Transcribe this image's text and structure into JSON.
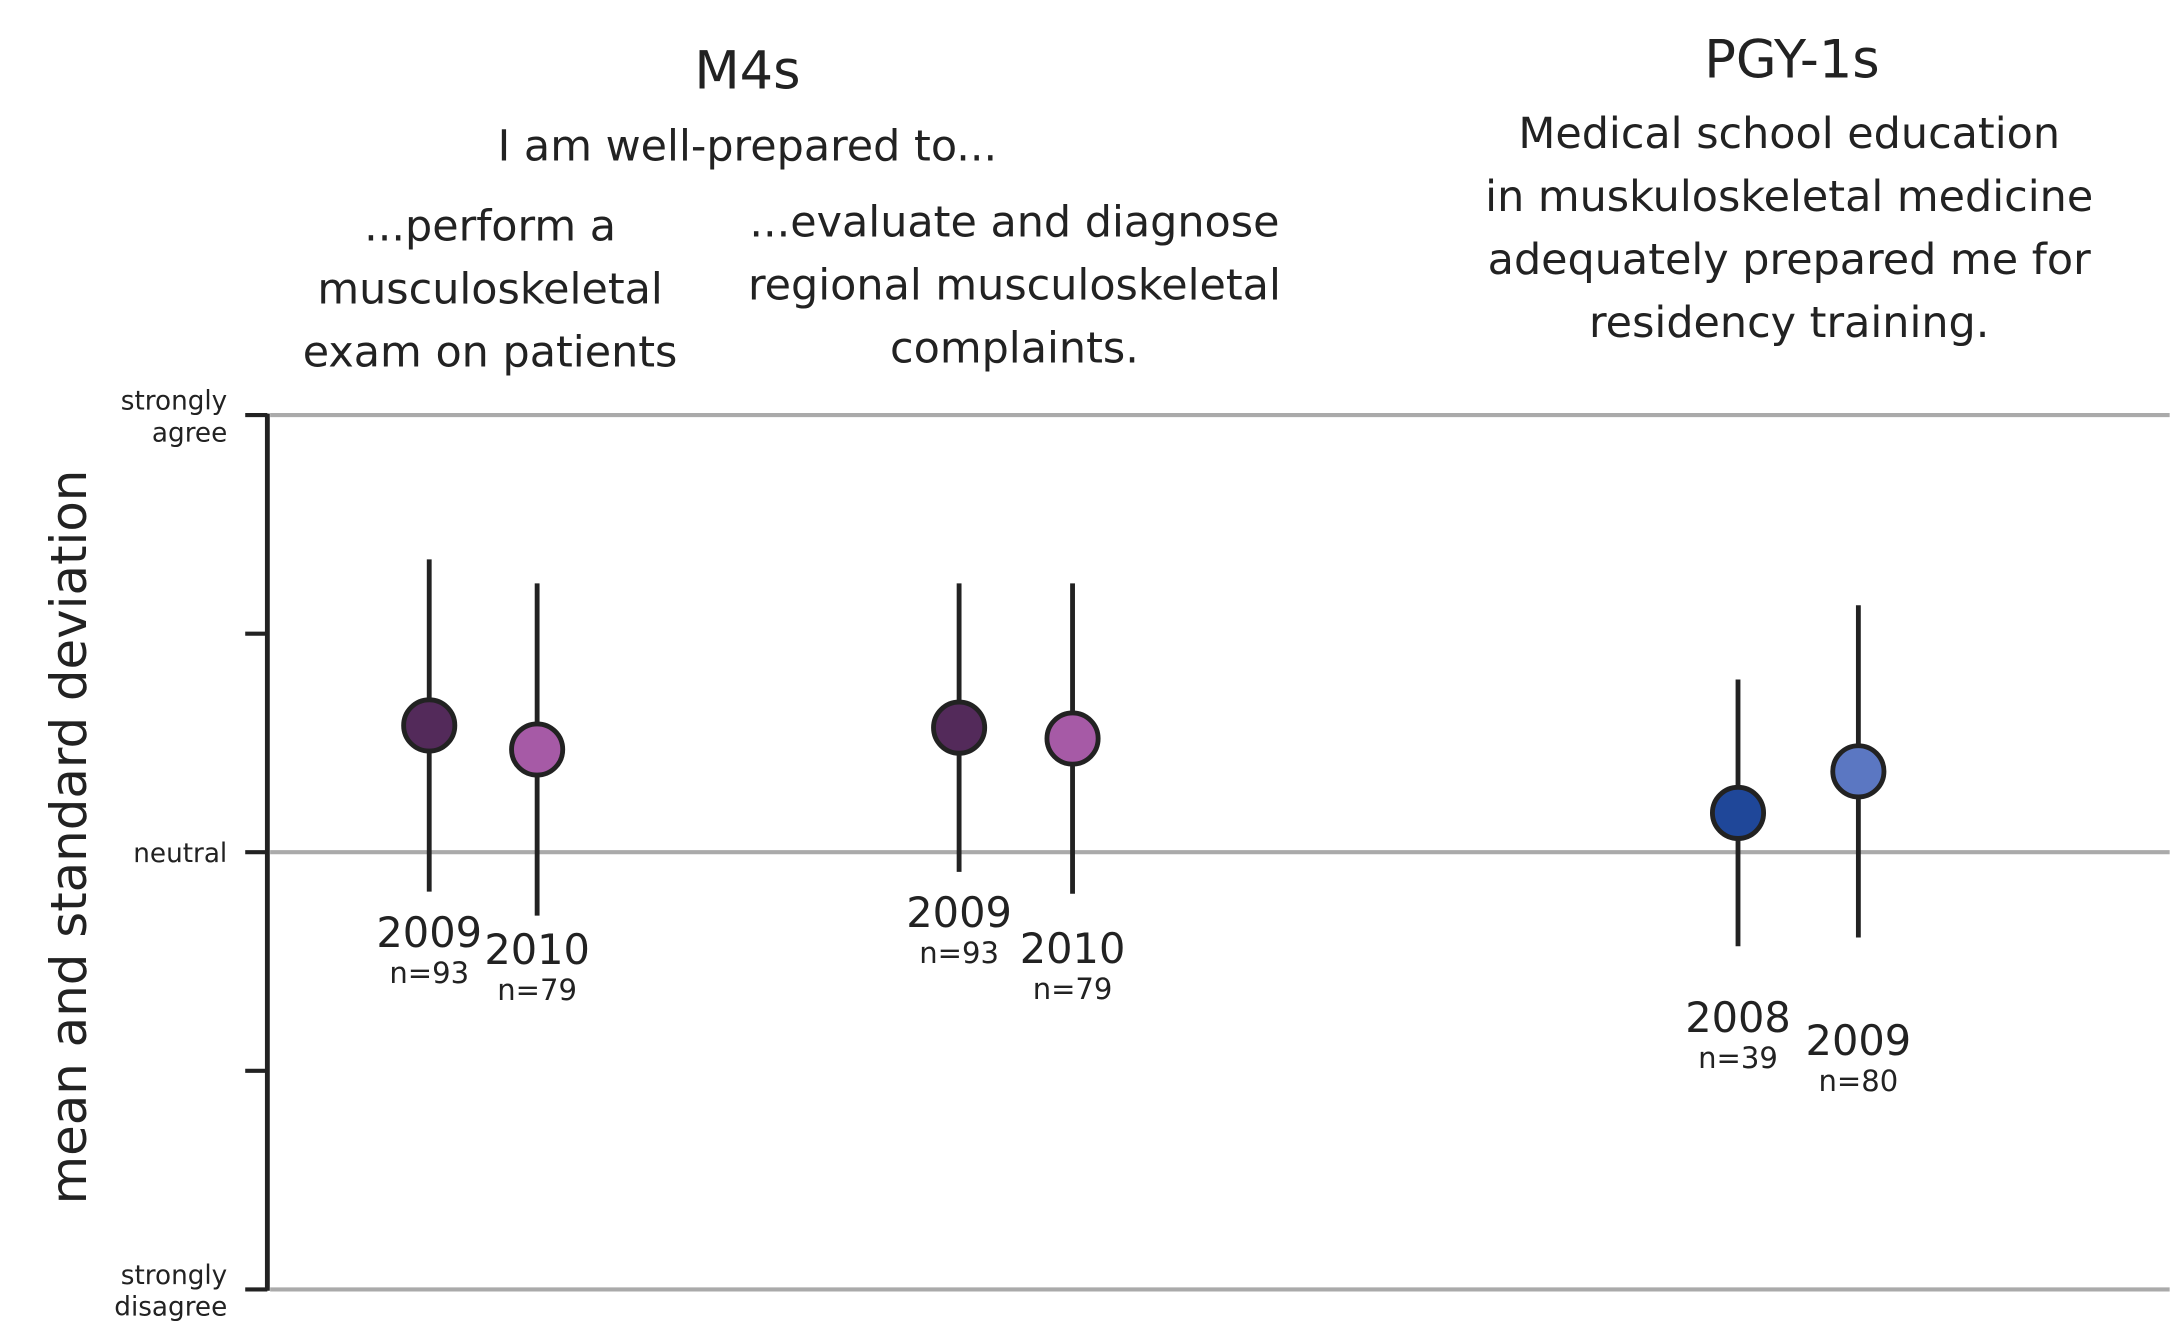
{
  "chart_data": {
    "type": "errorbar",
    "ylabel": "mean and standard deviation",
    "ylim": [
      1,
      5
    ],
    "yticks": [
      {
        "value": 1,
        "label": "strongly disagree"
      },
      2,
      {
        "value": 3,
        "label": "neutral"
      },
      4,
      {
        "value": 5,
        "label": "strongly agree"
      }
    ],
    "headers": [
      {
        "title": "M4s",
        "subtitle": "I am well-prepared to..."
      },
      {
        "title": "PGY-1s",
        "lines": [
          "Medical school education",
          "in muskuloskeletal medicine",
          "adequately prepared me for",
          "residency training."
        ]
      }
    ],
    "groups": [
      {
        "lines": [
          "...perform a",
          "musculoskeletal",
          "exam on patients"
        ],
        "points": [
          {
            "label": "2009",
            "n": "n=93",
            "value": 3.58,
            "sd": 0.76,
            "color": "#532a5a"
          },
          {
            "label": "2010",
            "n": "n=79",
            "value": 3.47,
            "sd": 0.76,
            "color": "#a65aa6"
          }
        ]
      },
      {
        "lines": [
          "...evaluate and diagnose",
          "regional musculoskeletal",
          "complaints."
        ],
        "points": [
          {
            "label": "2009",
            "n": "n=93",
            "value": 3.57,
            "sd": 0.66,
            "color": "#532a5a"
          },
          {
            "label": "2010",
            "n": "n=79",
            "value": 3.52,
            "sd": 0.71,
            "color": "#a65aa6"
          }
        ]
      },
      {
        "points": [
          {
            "label": "2008",
            "n": "n=39",
            "value": 3.18,
            "sd": 0.61,
            "color": "#1f4799"
          },
          {
            "label": "2009",
            "n": "n=80",
            "value": 3.37,
            "sd": 0.76,
            "color": "#5b77c2"
          }
        ]
      }
    ]
  }
}
